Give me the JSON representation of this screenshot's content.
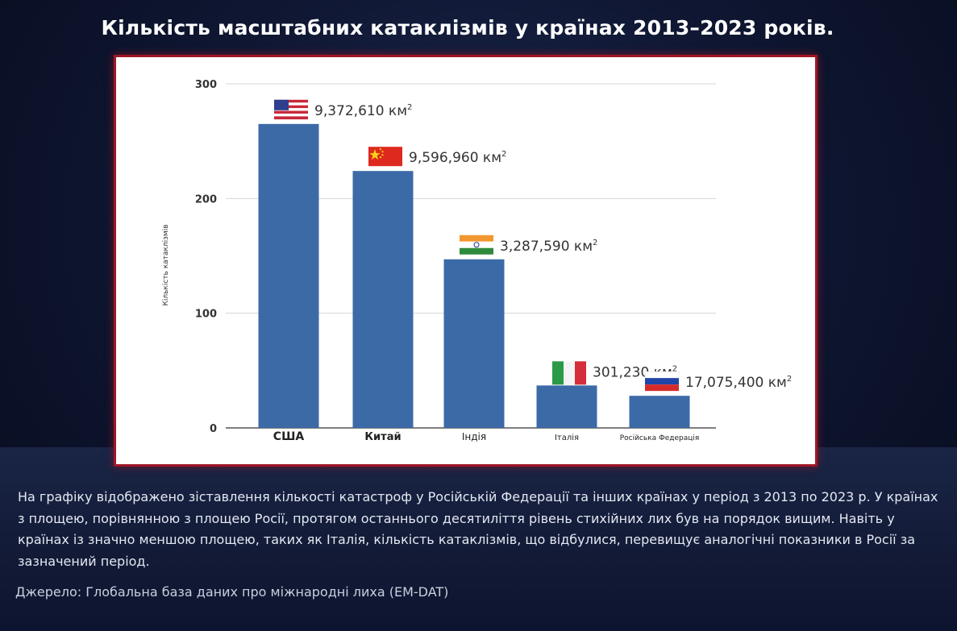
{
  "title": "Кількість масштабних катаклізмів у країнах 2013–2023 років.",
  "chart_data": {
    "type": "bar",
    "ylabel": "Кількість катаклізмів",
    "ylim": [
      0,
      300
    ],
    "yticks": [
      0,
      100,
      200,
      300
    ],
    "grid": true,
    "bar_color": "#3c6aa7",
    "categories": [
      "США",
      "Китай",
      "Індія",
      "Італія",
      "Російська Федерація"
    ],
    "values": [
      265,
      224,
      147,
      37,
      28
    ],
    "annotations": [
      {
        "area": "9,372,610 км",
        "flag": "usa-flag"
      },
      {
        "area": "9,596,960 км",
        "flag": "china-flag"
      },
      {
        "area": "3,287,590 км",
        "flag": "india-flag"
      },
      {
        "area": "301,230 км",
        "flag": "italy-flag"
      },
      {
        "area": "17,075,400 км",
        "flag": "russia-flag"
      }
    ],
    "area_unit_superscript": "2"
  },
  "caption_lines": [
    "На графіку відображено зіставлення кількості катастроф у Російській Федерації та інших країнах у період з 2013 по 2023 р. У країнах",
    "з площею, порівнянною з площею Росії, протягом останнього десятиліття рівень стихійних лих був на порядок вищим. Навіть у",
    "країнах із значно меншою площею, таких як Італія, кількість катаклізмів, що відбулися, перевищує аналогічні показники в Росії за",
    "зазначений період."
  ],
  "source": "Джерело: Глобальна база даних про міжнародні лиха (EM-DAT)"
}
